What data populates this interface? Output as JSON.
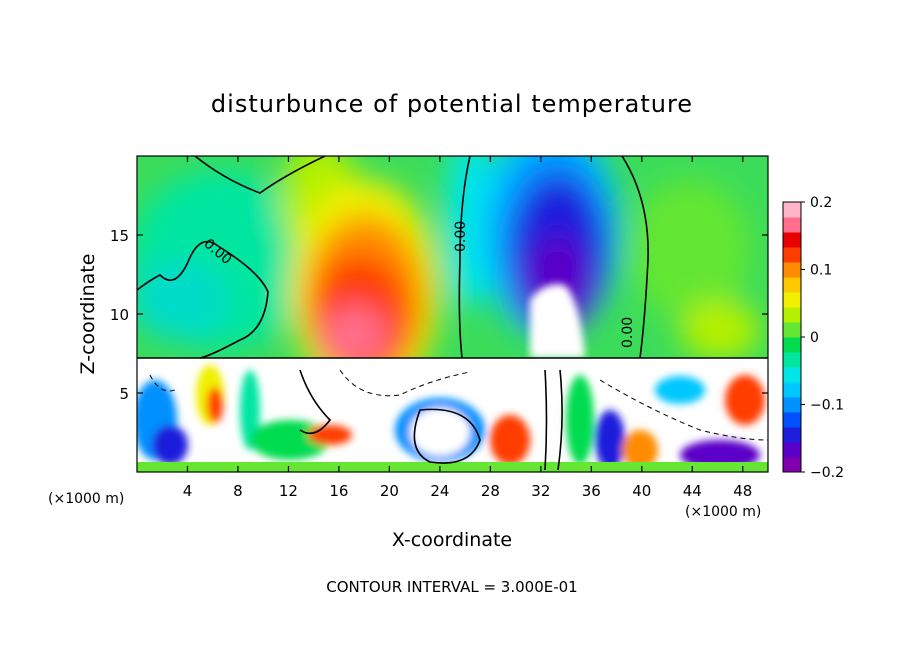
{
  "chart_data": {
    "type": "heatmap",
    "title": "disturbunce of potential temperature",
    "xlabel": "X-coordinate",
    "ylabel": "Z-coordinate",
    "x_unit": "(×1000 m)",
    "footer": "CONTOUR INTERVAL = 3.000E-01",
    "xlim": [
      0,
      50
    ],
    "ylim": [
      0,
      20
    ],
    "x_ticks": [
      4,
      8,
      12,
      16,
      20,
      24,
      28,
      32,
      36,
      40,
      44,
      48
    ],
    "y_ticks": [
      5,
      10,
      15
    ],
    "grid": false,
    "colorbar": {
      "range": [
        -0.2,
        0.2
      ],
      "tick_values": [
        0.2,
        0.1,
        0,
        -0.1,
        -0.2
      ],
      "tick_labels": [
        "0.2",
        "0.1",
        "0",
        "−0.1",
        "−0.2"
      ],
      "placement": "right",
      "colors": [
        "#8000b0",
        "#5a00c8",
        "#1e1edc",
        "#0050ff",
        "#0090ff",
        "#00c8ff",
        "#00e6e6",
        "#00e6a0",
        "#00dc50",
        "#64e632",
        "#b4f000",
        "#f0f000",
        "#ffc800",
        "#ff8c00",
        "#ff3c00",
        "#e60000",
        "#ff6e8c",
        "#ffb4c8"
      ]
    },
    "contour_labels": [
      "0.00",
      "0.00",
      "0.00"
    ],
    "features": [
      {
        "x": 18,
        "z": 12,
        "value": 0.15
      },
      {
        "x": 31,
        "z": 14,
        "value": -0.17
      },
      {
        "x": 8,
        "z": 12,
        "value": 0.0
      }
    ]
  }
}
